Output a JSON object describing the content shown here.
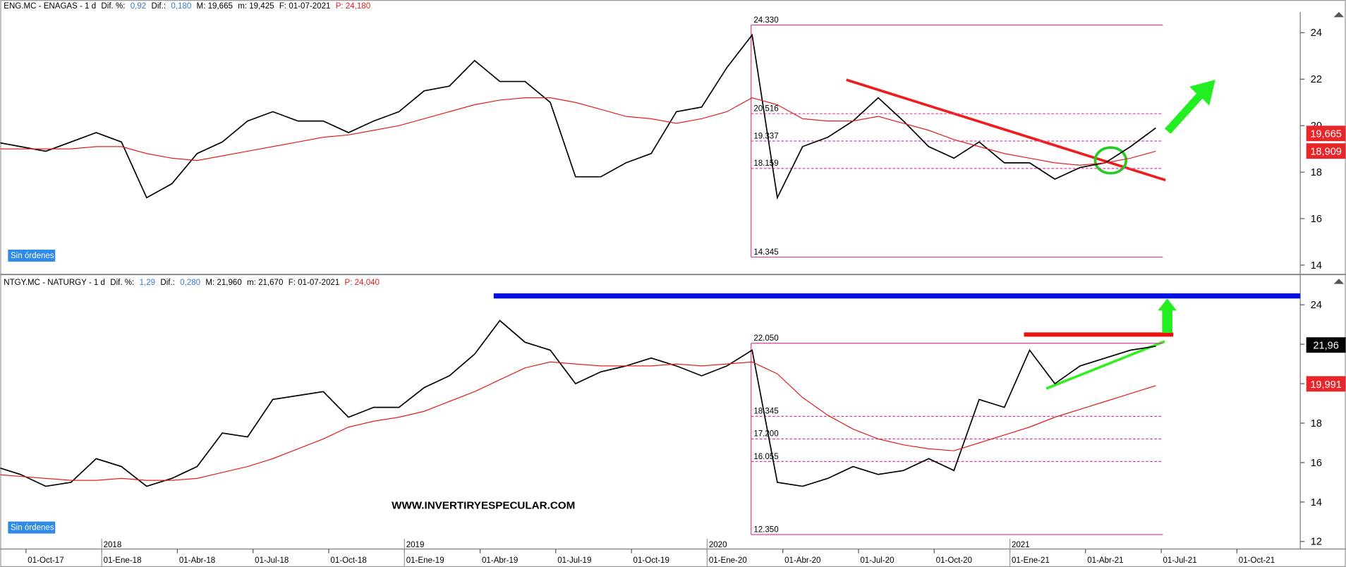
{
  "chart_data": [
    {
      "type": "line",
      "header": [
        {
          "text": "ENG.MC - ENAGAS -  1 d",
          "color": "#000000"
        },
        {
          "text": "Dif. %:",
          "color": "#000000"
        },
        {
          "text": "0,92",
          "color": "#3a78d6"
        },
        {
          "text": "Dif.:",
          "color": "#000000"
        },
        {
          "text": "0,180",
          "color": "#3a78d6"
        },
        {
          "text": "M: 19,665",
          "color": "#000000"
        },
        {
          "text": "m: 19,425",
          "color": "#000000"
        },
        {
          "text": "F: 01-07-2021",
          "color": "#000000"
        },
        {
          "text": "P: 24,180",
          "color": "#e02020"
        }
      ],
      "badge": "Sin órdenes",
      "x": [
        "2017-08",
        "2017-09",
        "2017-10",
        "2017-11",
        "2017-12",
        "2018-01",
        "2018-02",
        "2018-03",
        "2018-04",
        "2018-05",
        "2018-06",
        "2018-07",
        "2018-08",
        "2018-09",
        "2018-10",
        "2018-11",
        "2018-12",
        "2019-01",
        "2019-02",
        "2019-03",
        "2019-04",
        "2019-05",
        "2019-06",
        "2019-07",
        "2019-08",
        "2019-09",
        "2019-10",
        "2019-11",
        "2019-12",
        "2020-01",
        "2020-02",
        "2020-03",
        "2020-04",
        "2020-05",
        "2020-06",
        "2020-07",
        "2020-08",
        "2020-09",
        "2020-10",
        "2020-11",
        "2020-12",
        "2021-01",
        "2021-02",
        "2021-03",
        "2021-04",
        "2021-05",
        "2021-06"
      ],
      "series": [
        {
          "color": "#000000",
          "values": [
            19.3,
            19.1,
            18.9,
            19.3,
            19.7,
            19.3,
            16.9,
            17.5,
            18.8,
            19.3,
            20.2,
            20.6,
            20.2,
            20.2,
            19.7,
            20.2,
            20.6,
            21.5,
            21.7,
            22.8,
            21.9,
            21.9,
            21.0,
            17.8,
            17.8,
            18.4,
            18.8,
            20.6,
            20.8,
            22.5,
            23.9,
            16.9,
            19.1,
            19.5,
            20.2,
            21.2,
            20.2,
            19.1,
            18.6,
            19.3,
            18.4,
            18.4,
            17.7,
            18.2,
            18.4,
            19.1,
            19.9
          ]
        },
        {
          "color": "#e02020",
          "values": [
            19.0,
            19.0,
            19.0,
            19.0,
            19.1,
            19.1,
            18.8,
            18.6,
            18.5,
            18.7,
            18.9,
            19.1,
            19.3,
            19.5,
            19.6,
            19.8,
            20.0,
            20.3,
            20.6,
            20.9,
            21.1,
            21.2,
            21.2,
            21.0,
            20.7,
            20.4,
            20.3,
            20.1,
            20.3,
            20.6,
            21.2,
            20.9,
            20.3,
            20.2,
            20.2,
            20.4,
            20.1,
            19.8,
            19.4,
            19.1,
            18.8,
            18.6,
            18.4,
            18.3,
            18.4,
            18.6,
            18.9
          ]
        }
      ],
      "ylim": [
        13.67,
        24.89
      ],
      "yticks": [
        14,
        16,
        18,
        20,
        22,
        24
      ],
      "fib_levels": [
        {
          "value": 24.33,
          "label": "24.330"
        },
        {
          "value": 20.516,
          "label": "20.516"
        },
        {
          "value": 19.337,
          "label": "19.337"
        },
        {
          "value": 18.159,
          "label": "18.159"
        },
        {
          "value": 14.345,
          "label": "14.345"
        }
      ],
      "fib_color": "#e0409a",
      "price_labels": [
        {
          "value": 19.665,
          "label": "19,665",
          "color": "#e8262a"
        },
        {
          "value": 18.909,
          "label": "18,909",
          "color": "#e8262a"
        }
      ]
    },
    {
      "type": "line",
      "header": [
        {
          "text": "NTGY.MC - NATURGY -  1 d",
          "color": "#000000"
        },
        {
          "text": "Dif. %:",
          "color": "#000000"
        },
        {
          "text": "1,29",
          "color": "#3a78d6"
        },
        {
          "text": "Dif.:",
          "color": "#000000"
        },
        {
          "text": "0,280",
          "color": "#3a78d6"
        },
        {
          "text": "M: 21,960",
          "color": "#000000"
        },
        {
          "text": "m: 21,670",
          "color": "#000000"
        },
        {
          "text": "F: 01-07-2021",
          "color": "#000000"
        },
        {
          "text": "P: 24,040",
          "color": "#e02020"
        }
      ],
      "badge": "Sin órdenes",
      "watermark": "WWW.INVERTIRYESPECULAR.COM",
      "x": [
        "2017-08",
        "2017-09",
        "2017-10",
        "2017-11",
        "2017-12",
        "2018-01",
        "2018-02",
        "2018-03",
        "2018-04",
        "2018-05",
        "2018-06",
        "2018-07",
        "2018-08",
        "2018-09",
        "2018-10",
        "2018-11",
        "2018-12",
        "2019-01",
        "2019-02",
        "2019-03",
        "2019-04",
        "2019-05",
        "2019-06",
        "2019-07",
        "2019-08",
        "2019-09",
        "2019-10",
        "2019-11",
        "2019-12",
        "2020-01",
        "2020-02",
        "2020-03",
        "2020-04",
        "2020-05",
        "2020-06",
        "2020-07",
        "2020-08",
        "2020-09",
        "2020-10",
        "2020-11",
        "2020-12",
        "2021-01",
        "2021-02",
        "2021-03",
        "2021-04",
        "2021-05",
        "2021-06"
      ],
      "series": [
        {
          "color": "#000000",
          "values": [
            15.8,
            15.4,
            14.8,
            15.0,
            16.2,
            15.8,
            14.8,
            15.2,
            15.8,
            17.5,
            17.3,
            19.2,
            19.4,
            19.6,
            18.3,
            18.8,
            18.8,
            19.8,
            20.4,
            21.5,
            23.2,
            22.1,
            21.7,
            20.0,
            20.6,
            20.9,
            21.3,
            20.9,
            20.4,
            20.9,
            21.7,
            15.0,
            14.8,
            15.2,
            15.8,
            15.4,
            15.6,
            16.2,
            15.6,
            19.2,
            18.8,
            21.7,
            20.0,
            20.9,
            21.3,
            21.7,
            21.9
          ]
        },
        {
          "color": "#e02020",
          "values": [
            15.4,
            15.3,
            15.2,
            15.1,
            15.1,
            15.2,
            15.1,
            15.1,
            15.2,
            15.5,
            15.8,
            16.2,
            16.7,
            17.2,
            17.8,
            18.1,
            18.3,
            18.6,
            19.1,
            19.6,
            20.2,
            20.8,
            21.1,
            21.0,
            20.9,
            20.9,
            20.9,
            21.0,
            20.9,
            21.0,
            21.1,
            20.5,
            19.3,
            18.4,
            17.7,
            17.2,
            16.9,
            16.7,
            16.6,
            17.0,
            17.4,
            17.8,
            18.3,
            18.7,
            19.1,
            19.5,
            19.9
          ]
        }
      ],
      "ylim": [
        11.62,
        24.97
      ],
      "yticks": [
        12,
        14,
        16,
        18,
        20,
        22,
        24
      ],
      "fib_levels": [
        {
          "value": 22.05,
          "label": "22.050"
        },
        {
          "value": 18.345,
          "label": "18.345"
        },
        {
          "value": 17.2,
          "label": "17.200"
        },
        {
          "value": 16.055,
          "label": "16.055"
        },
        {
          "value": 12.35,
          "label": "12.350"
        }
      ],
      "fib_color": "#e0409a",
      "price_labels": [
        {
          "value": 21.96,
          "label": "21,96",
          "color": "#000000"
        },
        {
          "value": 19.991,
          "label": "19,991",
          "color": "#e8262a"
        }
      ]
    }
  ],
  "x_axis": {
    "xticks": [
      {
        "value": "2017-10",
        "label": "01-Oct-17"
      },
      {
        "value": "2018-01",
        "label": "01-Ene-18"
      },
      {
        "value": "2018-04",
        "label": "01-Abr-18"
      },
      {
        "value": "2018-07",
        "label": "01-Jul-18"
      },
      {
        "value": "2018-10",
        "label": "01-Oct-18"
      },
      {
        "value": "2019-01",
        "label": "01-Ene-19"
      },
      {
        "value": "2019-04",
        "label": "01-Abr-19"
      },
      {
        "value": "2019-07",
        "label": "01-Jul-19"
      },
      {
        "value": "2019-10",
        "label": "01-Oct-19"
      },
      {
        "value": "2020-01",
        "label": "01-Ene-20"
      },
      {
        "value": "2020-04",
        "label": "01-Abr-20"
      },
      {
        "value": "2020-07",
        "label": "01-Jul-20"
      },
      {
        "value": "2020-10",
        "label": "01-Oct-20"
      },
      {
        "value": "2021-01",
        "label": "01-Ene-21"
      },
      {
        "value": "2021-04",
        "label": "01-Abr-21"
      },
      {
        "value": "2021-07",
        "label": "01-Jul-21"
      },
      {
        "value": "2021-10",
        "label": "01-Oct-21"
      }
    ],
    "year_ticks": [
      {
        "value": "2018-01",
        "label": "2018"
      },
      {
        "value": "2019-01",
        "label": "2019"
      },
      {
        "value": "2020-01",
        "label": "2020"
      },
      {
        "value": "2021-01",
        "label": "2021"
      }
    ]
  }
}
